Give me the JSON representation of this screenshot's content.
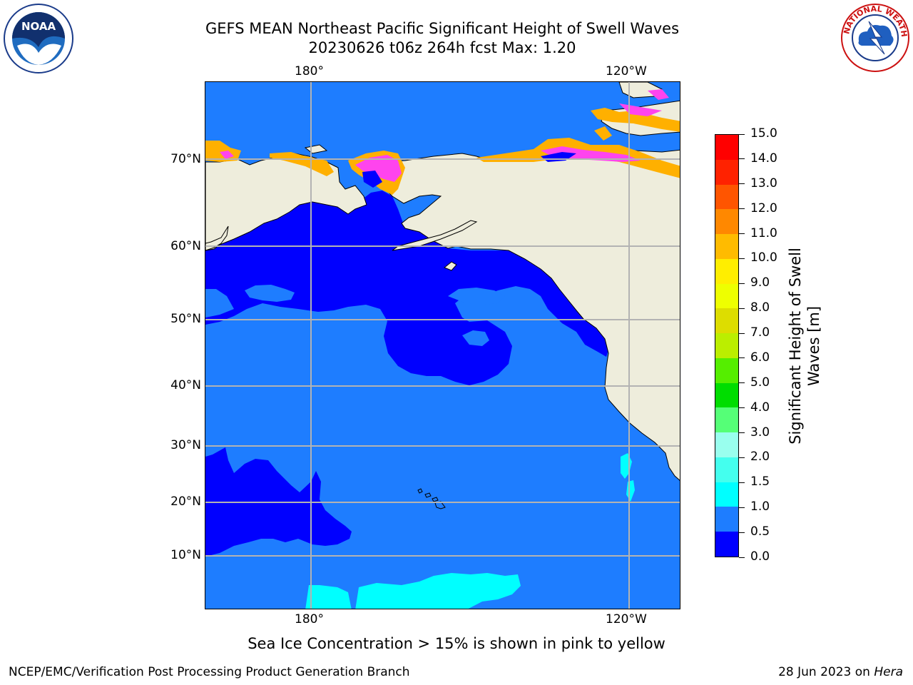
{
  "title": {
    "line1": "GEFS MEAN Northeast Pacific Significant Height of Swell Waves",
    "line2": "20230626 t06z 264h fcst   Max: 1.20"
  },
  "logos": {
    "left": {
      "icon": "noaa-logo",
      "text": "NOAA"
    },
    "right": {
      "icon": "nws-logo",
      "text": "NATIONAL WEATHER SERVICE"
    }
  },
  "map": {
    "top_lon_labels": [
      "180°",
      "120°W"
    ],
    "bottom_lon_labels": [
      "180°",
      "120°W"
    ],
    "lat_labels": [
      "70°N",
      "60°N",
      "50°N",
      "40°N",
      "30°N",
      "20°N",
      "10°N"
    ],
    "colors": {
      "ocean_low": "#0000ff",
      "ocean_mid": "#1e7dff",
      "ocean_high": "#00ffff",
      "land": "#eeeddc",
      "grid": "#b3b3b3",
      "ice_pink": "#ff44ee",
      "ice_orange": "#ffb000"
    }
  },
  "colorbar": {
    "label": "Significant Height of Swell Waves [m]",
    "label_line1": "Significant Height of Swell",
    "label_line2": "Waves [m]",
    "ticks": [
      "0.0",
      "0.5",
      "1.0",
      "1.5",
      "2.0",
      "3.0",
      "4.0",
      "5.0",
      "6.0",
      "7.0",
      "8.0",
      "9.0",
      "10.0",
      "11.0",
      "12.0",
      "13.0",
      "14.0",
      "15.0"
    ],
    "colors": [
      "#0000ff",
      "#1e7dff",
      "#00ffff",
      "#44ffee",
      "#99ffee",
      "#55ff77",
      "#00dd00",
      "#55ee00",
      "#bbee00",
      "#dddd00",
      "#eeff00",
      "#ffee00",
      "#ffbb00",
      "#ff8800",
      "#ff5500",
      "#ff2200",
      "#ff0000"
    ]
  },
  "footer": {
    "note": "Sea Ice Concentration > 15% is shown in pink to yellow",
    "credit": "NCEP/EMC/Verification Post Processing Product Generation Branch",
    "date": "28 Jun 2023 on",
    "host": "Hera"
  }
}
